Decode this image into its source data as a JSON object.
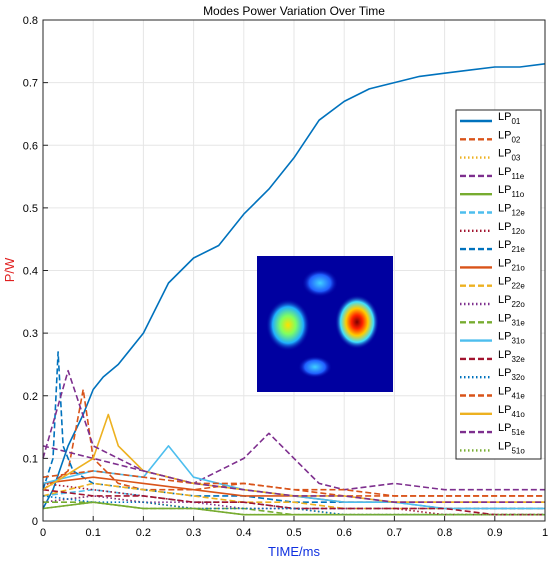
{
  "chart_data": {
    "type": "line",
    "title": "Modes Power Variation Over Time",
    "xlabel": "TIME/ms",
    "ylabel": "P/W",
    "xlim": [
      0,
      1
    ],
    "ylim": [
      0,
      0.8
    ],
    "xticks": [
      "0",
      "0.1",
      "0.2",
      "0.3",
      "0.4",
      "0.5",
      "0.6",
      "0.7",
      "0.8",
      "0.9",
      "1"
    ],
    "yticks": [
      "0",
      "0.1",
      "0.2",
      "0.3",
      "0.4",
      "0.5",
      "0.6",
      "0.7",
      "0.8"
    ],
    "grid": true,
    "legend_placement": "right",
    "legend_label_prefix": "LP",
    "inset": "mode intensity profile (jet colormap)",
    "series": [
      {
        "name": "01",
        "color": "#0072BD",
        "dash": "solid",
        "x": [
          0,
          0.02,
          0.05,
          0.08,
          0.1,
          0.12,
          0.15,
          0.2,
          0.25,
          0.3,
          0.35,
          0.4,
          0.45,
          0.5,
          0.55,
          0.6,
          0.65,
          0.7,
          0.75,
          0.8,
          0.85,
          0.9,
          0.95,
          1
        ],
        "y": [
          0.02,
          0.05,
          0.12,
          0.17,
          0.21,
          0.23,
          0.25,
          0.3,
          0.38,
          0.42,
          0.44,
          0.49,
          0.53,
          0.58,
          0.64,
          0.67,
          0.69,
          0.7,
          0.71,
          0.715,
          0.72,
          0.725,
          0.725,
          0.73
        ]
      },
      {
        "name": "02",
        "color": "#D95319",
        "dash": "dash",
        "x": [
          0,
          0.05,
          0.08,
          0.1,
          0.15,
          0.2,
          0.3,
          0.4,
          0.5,
          0.6,
          0.7,
          0.8,
          0.9,
          1
        ],
        "y": [
          0.05,
          0.08,
          0.21,
          0.1,
          0.06,
          0.05,
          0.05,
          0.06,
          0.05,
          0.04,
          0.04,
          0.04,
          0.04,
          0.04
        ]
      },
      {
        "name": "03",
        "color": "#EDB120",
        "dash": "dot",
        "x": [
          0,
          0.1,
          0.2,
          0.3,
          0.4,
          0.5,
          0.6,
          0.7,
          0.8,
          0.9,
          1
        ],
        "y": [
          0.03,
          0.04,
          0.03,
          0.02,
          0.02,
          0.02,
          0.01,
          0.01,
          0.01,
          0.01,
          0.01
        ]
      },
      {
        "name": "11e",
        "color": "#7E2F8E",
        "dash": "dash",
        "x": [
          0,
          0.1,
          0.2,
          0.3,
          0.4,
          0.45,
          0.5,
          0.55,
          0.6,
          0.7,
          0.8,
          0.9,
          1
        ],
        "y": [
          0.12,
          0.1,
          0.08,
          0.06,
          0.1,
          0.14,
          0.1,
          0.06,
          0.05,
          0.06,
          0.05,
          0.05,
          0.05
        ]
      },
      {
        "name": "11o",
        "color": "#77AC30",
        "dash": "solid",
        "x": [
          0,
          0.1,
          0.2,
          0.3,
          0.4,
          0.5,
          0.6,
          0.7,
          0.8,
          0.9,
          1
        ],
        "y": [
          0.02,
          0.03,
          0.02,
          0.02,
          0.01,
          0.01,
          0.01,
          0.01,
          0.01,
          0.01,
          0.01
        ]
      },
      {
        "name": "12e",
        "color": "#4DBEEE",
        "dash": "dash",
        "x": [
          0,
          0.1,
          0.2,
          0.3,
          0.4,
          0.5,
          0.6,
          0.7,
          0.8,
          0.9,
          1
        ],
        "y": [
          0.04,
          0.05,
          0.04,
          0.03,
          0.03,
          0.02,
          0.02,
          0.02,
          0.02,
          0.02,
          0.02
        ]
      },
      {
        "name": "12o",
        "color": "#A2142F",
        "dash": "dot",
        "x": [
          0,
          0.1,
          0.2,
          0.3,
          0.4,
          0.5,
          0.6,
          0.7,
          0.8,
          0.9,
          1
        ],
        "y": [
          0.06,
          0.05,
          0.04,
          0.03,
          0.03,
          0.02,
          0.02,
          0.02,
          0.01,
          0.01,
          0.01
        ]
      },
      {
        "name": "21e",
        "color": "#0072BD",
        "dash": "dash",
        "x": [
          0,
          0.02,
          0.03,
          0.04,
          0.06,
          0.1,
          0.2,
          0.3,
          0.4,
          0.5,
          0.6,
          0.7,
          0.8,
          0.9,
          1
        ],
        "y": [
          0.05,
          0.1,
          0.27,
          0.12,
          0.08,
          0.06,
          0.05,
          0.04,
          0.04,
          0.03,
          0.03,
          0.03,
          0.02,
          0.02,
          0.02
        ]
      },
      {
        "name": "21o",
        "color": "#D95319",
        "dash": "solid",
        "x": [
          0,
          0.1,
          0.2,
          0.3,
          0.4,
          0.5,
          0.6,
          0.7,
          0.8,
          0.9,
          1
        ],
        "y": [
          0.06,
          0.07,
          0.06,
          0.05,
          0.04,
          0.04,
          0.03,
          0.03,
          0.03,
          0.03,
          0.03
        ]
      },
      {
        "name": "22e",
        "color": "#EDB120",
        "dash": "dash",
        "x": [
          0,
          0.1,
          0.2,
          0.3,
          0.4,
          0.5,
          0.6,
          0.7,
          0.8,
          0.9,
          1
        ],
        "y": [
          0.04,
          0.06,
          0.05,
          0.04,
          0.03,
          0.03,
          0.02,
          0.02,
          0.02,
          0.02,
          0.02
        ]
      },
      {
        "name": "22o",
        "color": "#7E2F8E",
        "dash": "dot",
        "x": [
          0,
          0.1,
          0.2,
          0.3,
          0.4,
          0.5,
          0.6,
          0.7,
          0.8,
          0.9,
          1
        ],
        "y": [
          0.03,
          0.04,
          0.03,
          0.03,
          0.02,
          0.02,
          0.02,
          0.02,
          0.02,
          0.02,
          0.02
        ]
      },
      {
        "name": "31e",
        "color": "#77AC30",
        "dash": "dash",
        "x": [
          0,
          0.1,
          0.2,
          0.3,
          0.4,
          0.5,
          0.6,
          0.7,
          0.8,
          0.9,
          1
        ],
        "y": [
          0.03,
          0.03,
          0.02,
          0.02,
          0.02,
          0.01,
          0.01,
          0.01,
          0.01,
          0.01,
          0.01
        ]
      },
      {
        "name": "31o",
        "color": "#4DBEEE",
        "dash": "solid",
        "x": [
          0,
          0.1,
          0.2,
          0.25,
          0.3,
          0.4,
          0.5,
          0.6,
          0.7,
          0.8,
          0.9,
          1
        ],
        "y": [
          0.06,
          0.08,
          0.07,
          0.12,
          0.07,
          0.05,
          0.04,
          0.03,
          0.03,
          0.02,
          0.02,
          0.02
        ]
      },
      {
        "name": "32e",
        "color": "#A2142F",
        "dash": "dash",
        "x": [
          0,
          0.1,
          0.2,
          0.3,
          0.4,
          0.5,
          0.6,
          0.7,
          0.8,
          0.9,
          1
        ],
        "y": [
          0.05,
          0.04,
          0.04,
          0.03,
          0.03,
          0.02,
          0.02,
          0.02,
          0.02,
          0.01,
          0.01
        ]
      },
      {
        "name": "32o",
        "color": "#0072BD",
        "dash": "dot",
        "x": [
          0,
          0.1,
          0.2,
          0.3,
          0.4,
          0.5,
          0.6,
          0.7,
          0.8,
          0.9,
          1
        ],
        "y": [
          0.04,
          0.03,
          0.03,
          0.02,
          0.02,
          0.02,
          0.01,
          0.01,
          0.01,
          0.01,
          0.01
        ]
      },
      {
        "name": "41e",
        "color": "#D95319",
        "dash": "dash",
        "x": [
          0,
          0.1,
          0.2,
          0.3,
          0.4,
          0.5,
          0.6,
          0.7,
          0.8,
          0.9,
          1
        ],
        "y": [
          0.07,
          0.08,
          0.07,
          0.06,
          0.06,
          0.05,
          0.05,
          0.04,
          0.04,
          0.04,
          0.04
        ]
      },
      {
        "name": "41o",
        "color": "#EDB120",
        "dash": "solid",
        "x": [
          0,
          0.1,
          0.13,
          0.15,
          0.2,
          0.3,
          0.4,
          0.5,
          0.6,
          0.7,
          0.8,
          0.9,
          1
        ],
        "y": [
          0.05,
          0.1,
          0.17,
          0.12,
          0.08,
          0.06,
          0.05,
          0.04,
          0.04,
          0.03,
          0.03,
          0.03,
          0.03
        ]
      },
      {
        "name": "51e",
        "color": "#7E2F8E",
        "dash": "dash",
        "x": [
          0,
          0.05,
          0.1,
          0.2,
          0.3,
          0.4,
          0.5,
          0.6,
          0.7,
          0.8,
          0.9,
          1
        ],
        "y": [
          0.1,
          0.24,
          0.12,
          0.08,
          0.06,
          0.05,
          0.04,
          0.04,
          0.03,
          0.03,
          0.03,
          0.03
        ]
      },
      {
        "name": "51o",
        "color": "#77AC30",
        "dash": "dot",
        "x": [
          0,
          0.1,
          0.2,
          0.3,
          0.4,
          0.5,
          0.6,
          0.7,
          0.8,
          0.9,
          1
        ],
        "y": [
          0.02,
          0.03,
          0.02,
          0.02,
          0.01,
          0.01,
          0.01,
          0.01,
          0.01,
          0.01,
          0.01
        ]
      }
    ]
  }
}
